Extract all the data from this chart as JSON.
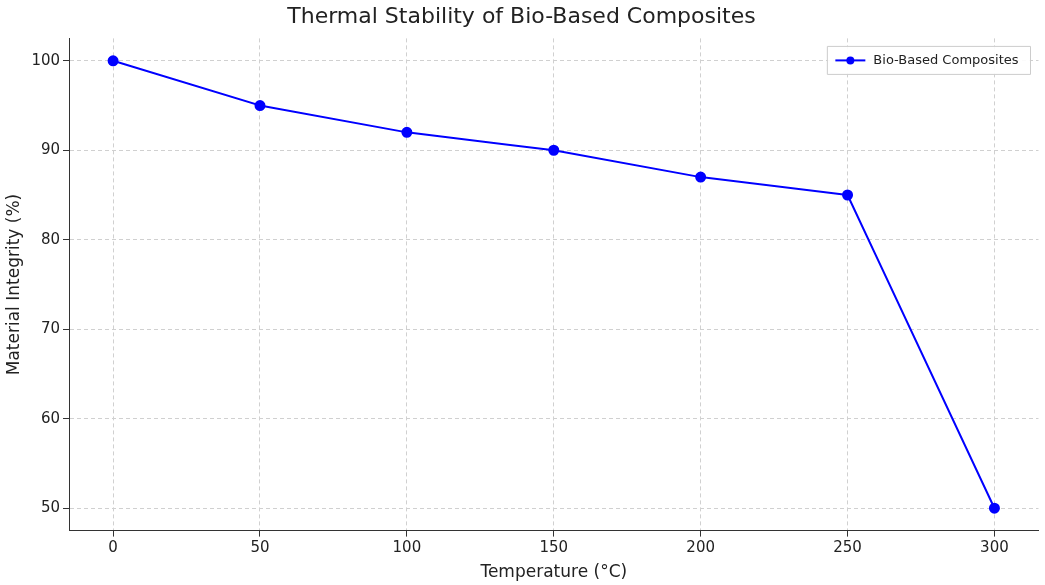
{
  "chart_data": {
    "type": "line",
    "title": "Thermal Stability of Bio-Based Composites",
    "xlabel": "Temperature (°C)",
    "ylabel": "Material Integrity (%)",
    "x": [
      0,
      50,
      100,
      150,
      200,
      250,
      300
    ],
    "series": [
      {
        "name": "Bio-Based Composites",
        "color": "#0000ff",
        "values": [
          100,
          95,
          92,
          90,
          87,
          85,
          50
        ]
      }
    ],
    "xlim": [
      -15,
      315
    ],
    "xticks": [
      0,
      50,
      100,
      150,
      200,
      250,
      300
    ],
    "ylim": [
      47.5,
      102.5
    ],
    "yticks": [
      50,
      60,
      70,
      80,
      90,
      100
    ],
    "grid": true,
    "legend": "top right",
    "marker": "circle",
    "line_style": "solid"
  }
}
